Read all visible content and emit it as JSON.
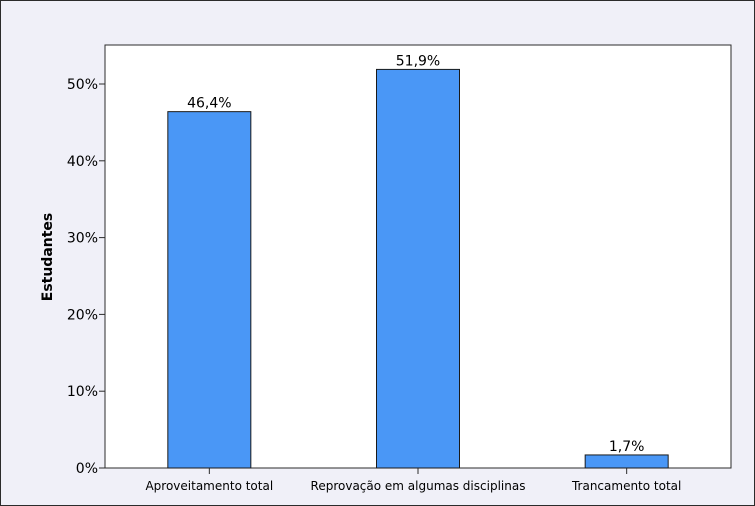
{
  "chart_data": {
    "type": "bar",
    "categories": [
      "Aproveitamento total",
      "Reprovação em algumas disciplinas",
      "Trancamento total"
    ],
    "values": [
      46.4,
      51.9,
      1.7
    ],
    "data_labels": [
      "46,4%",
      "51,9%",
      "1,7%"
    ],
    "ylabel": "Estudantes",
    "xlabel": "",
    "ylim": [
      0,
      55
    ],
    "yticks": [
      0,
      10,
      20,
      30,
      40,
      50
    ],
    "ytick_labels": [
      "0%",
      "10%",
      "20%",
      "30%",
      "40%",
      "50%"
    ],
    "grid": false,
    "bar_color": "#4a97f6",
    "plot_background": "#ffffff",
    "frame_background": "#f0f0f8"
  }
}
